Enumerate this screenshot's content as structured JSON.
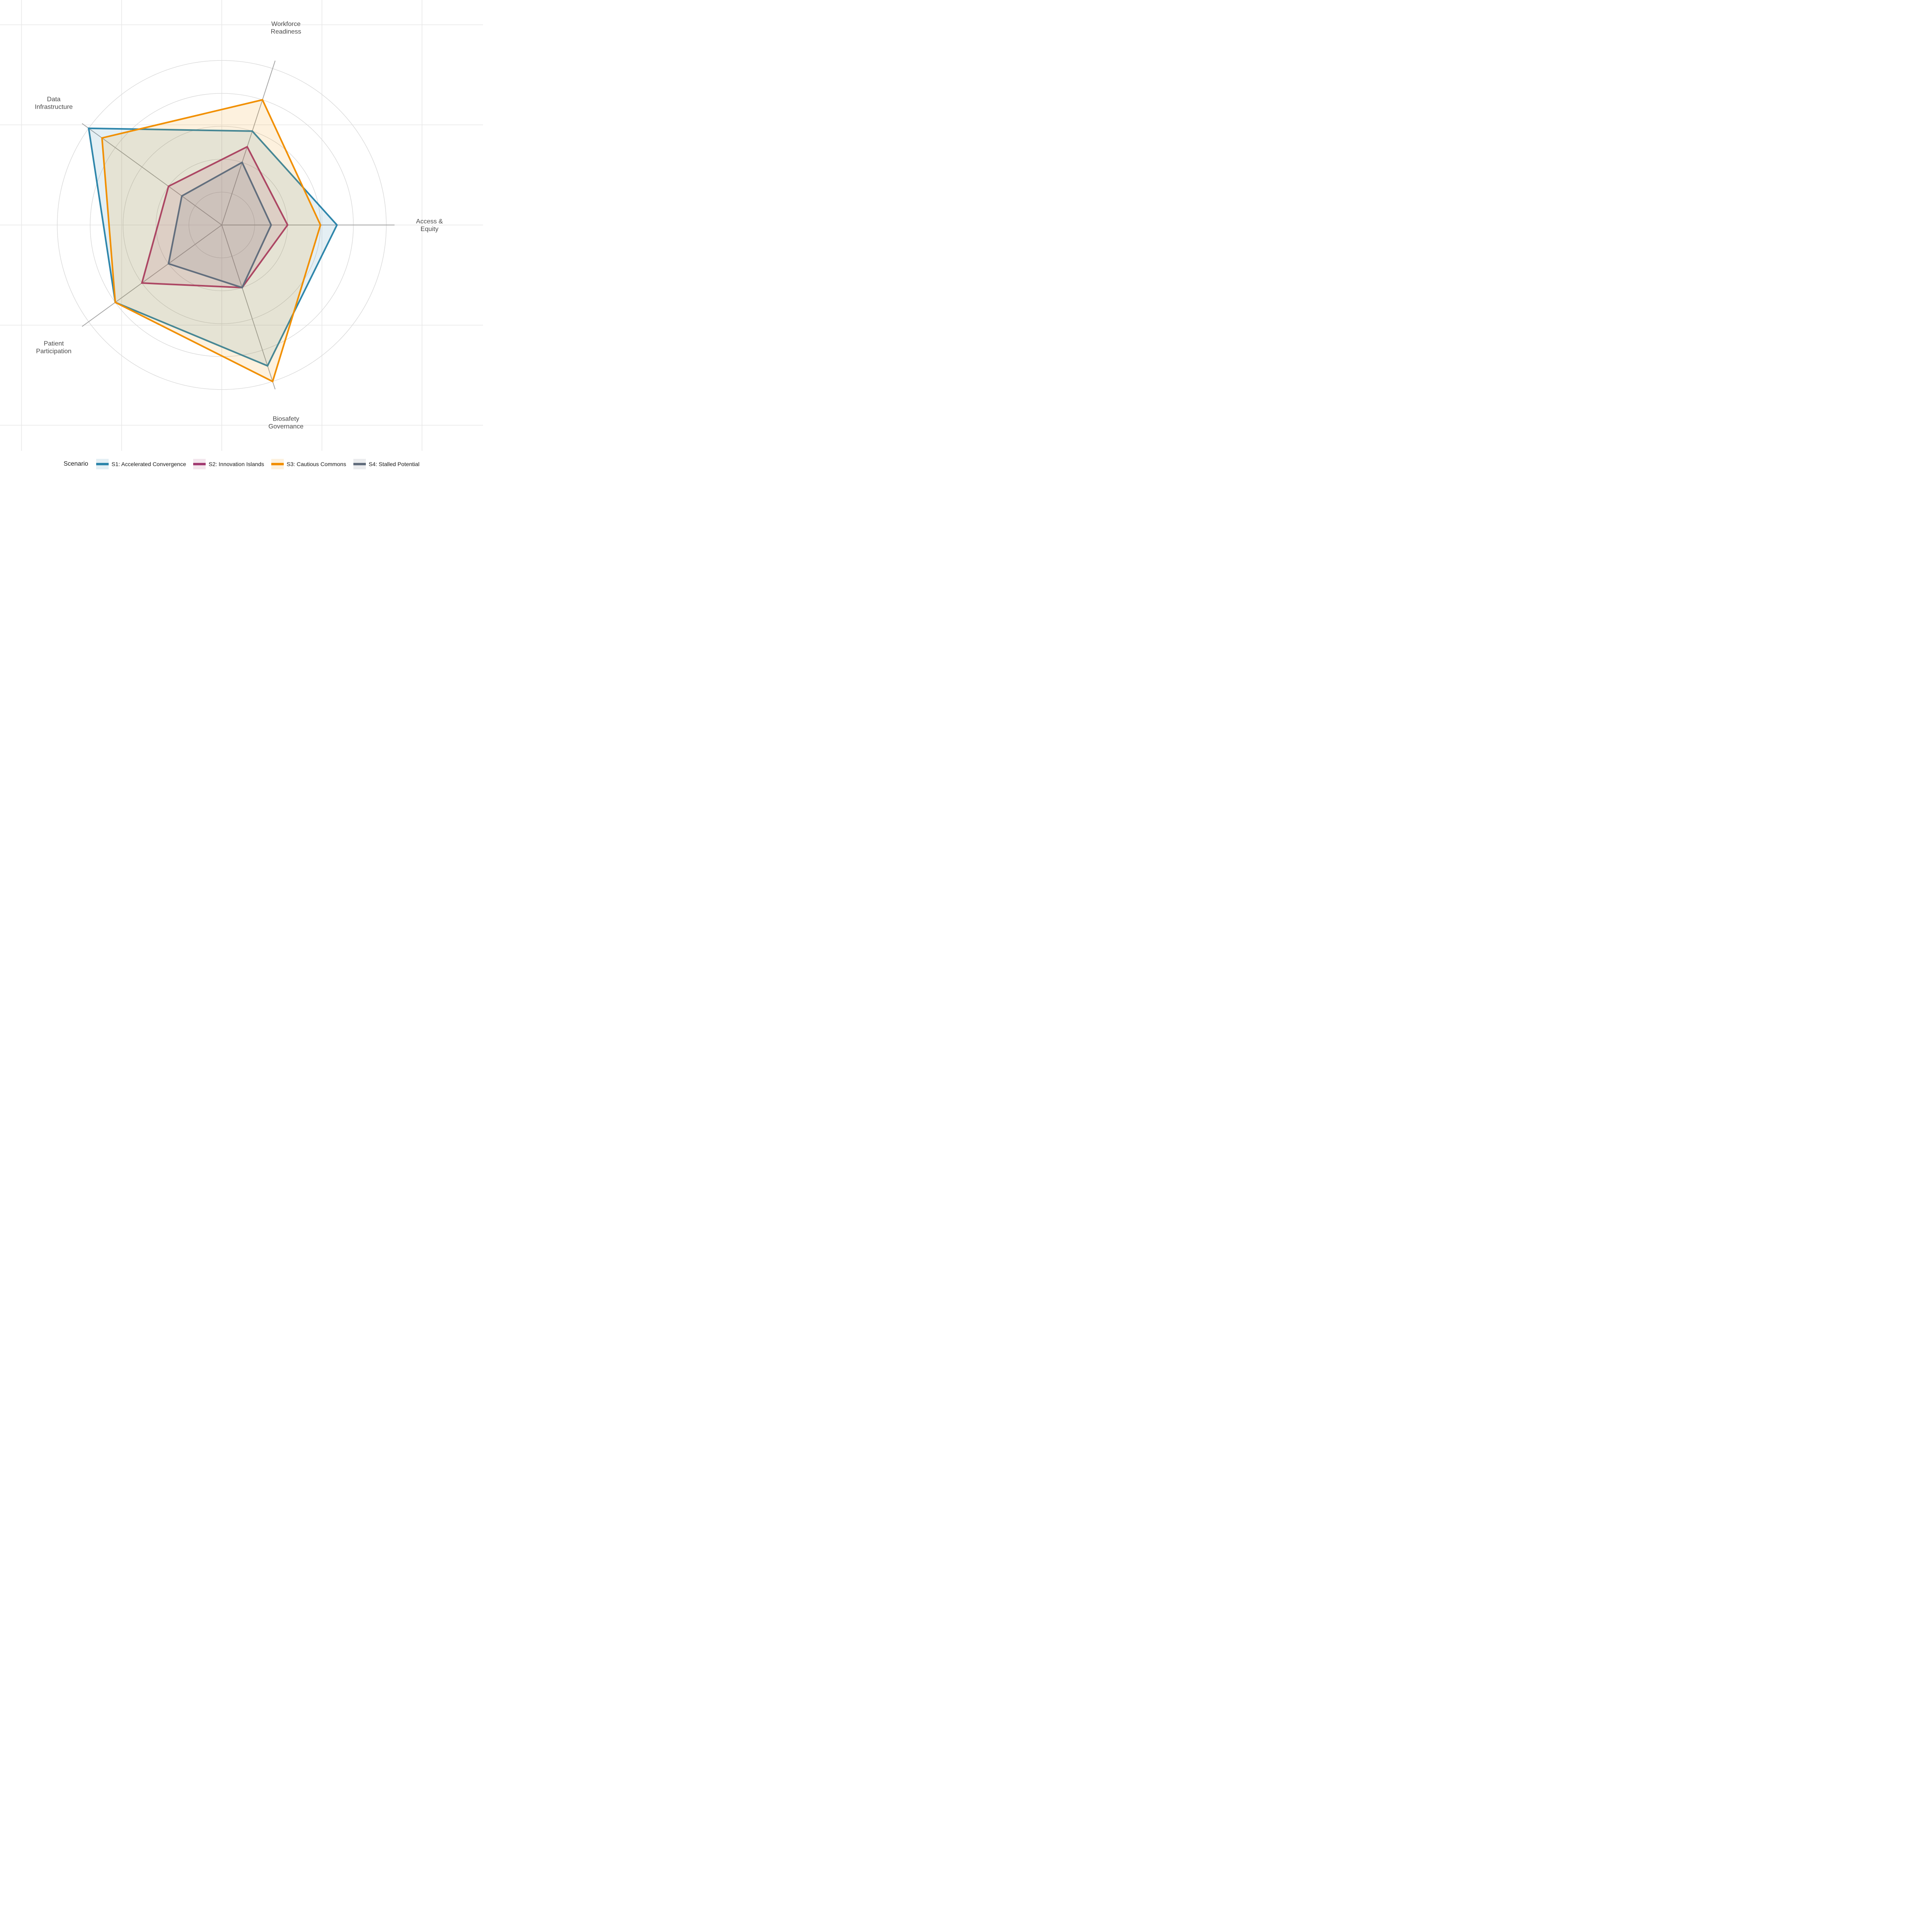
{
  "chart_data": {
    "type": "radar",
    "title": "",
    "axes": [
      {
        "label": "Workforce Readiness",
        "label_lines": [
          "Workforce",
          "Readiness"
        ],
        "angle_deg": 72
      },
      {
        "label": "Access & Equity",
        "label_lines": [
          "Access &",
          "Equity"
        ],
        "angle_deg": 0
      },
      {
        "label": "Biosafety Governance",
        "label_lines": [
          "Biosafety",
          "Governance"
        ],
        "angle_deg": 288
      },
      {
        "label": "Patient Participation",
        "label_lines": [
          "Patient",
          "Participation"
        ],
        "angle_deg": 216
      },
      {
        "label": "Data Infrastructure",
        "label_lines": [
          "Data",
          "Infrastructure"
        ],
        "angle_deg": 144
      }
    ],
    "scale": {
      "min": 0,
      "max": 5,
      "grid_circle_values": [
        1,
        2,
        3,
        4,
        5
      ],
      "spoke_extent": 5.25
    },
    "series": [
      {
        "name": "S1: Accelerated Convergence",
        "color": "#2E86AB",
        "values": [
          3.0,
          3.5,
          4.5,
          4.0,
          5.0
        ]
      },
      {
        "name": "S2: Innovation Islands",
        "color": "#A23B72",
        "values": [
          2.5,
          2.0,
          2.0,
          3.0,
          2.0
        ]
      },
      {
        "name": "S3: Cautious Commons",
        "color": "#F18F01",
        "values": [
          4.0,
          3.0,
          5.0,
          4.0,
          4.5
        ]
      },
      {
        "name": "S4: Stalled Potential",
        "color": "#626E7D",
        "values": [
          2.0,
          1.5,
          2.0,
          2.0,
          1.5
        ]
      }
    ],
    "fill_opacity": 0.13,
    "legend": {
      "title": "Scenario",
      "position": "bottom"
    },
    "grid": true,
    "axis_label_color": "#4a4a4a",
    "background": "#FFFFFF"
  }
}
